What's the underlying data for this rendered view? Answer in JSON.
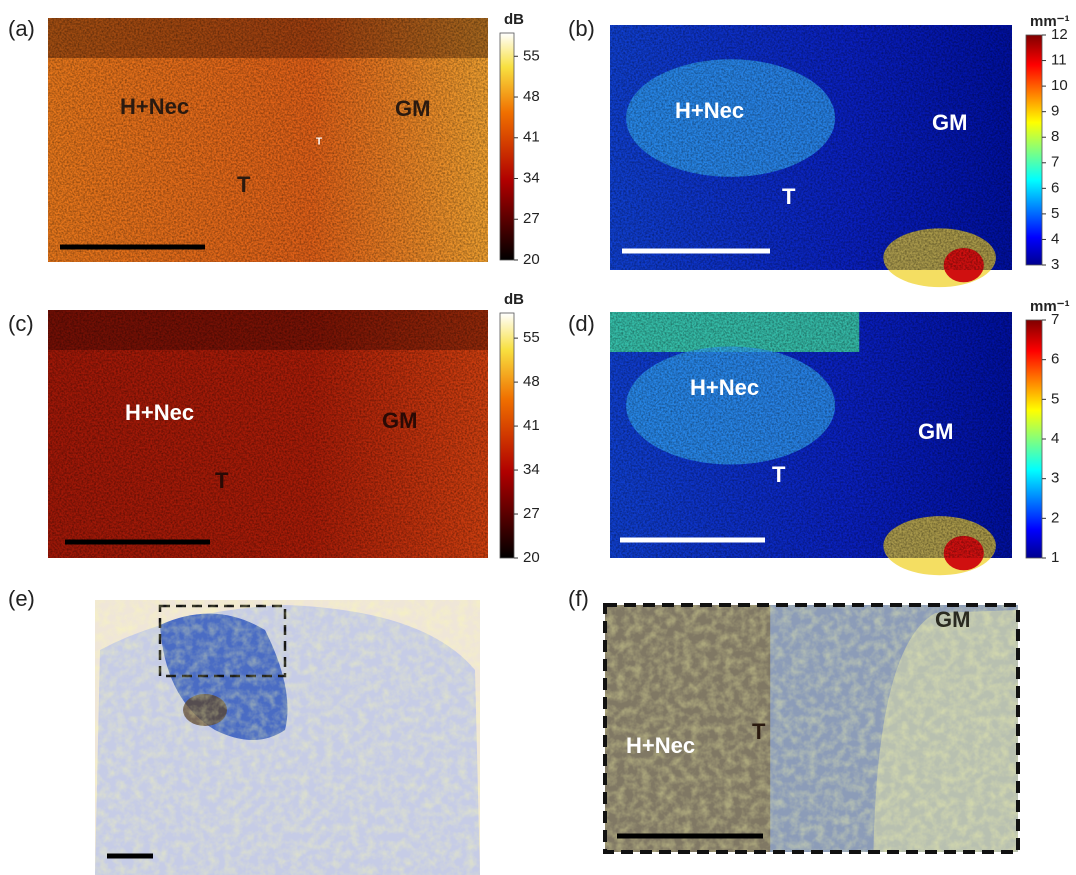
{
  "panels": [
    {
      "label": "(a)",
      "annotations": [
        "H+Nec",
        "GM",
        "T",
        "T"
      ],
      "colorbar": {
        "unit": "dB",
        "colormap": "hot",
        "lim": [
          20,
          59
        ],
        "ticks": [
          20,
          27,
          34,
          41,
          48,
          55
        ]
      }
    },
    {
      "label": "(b)",
      "annotations": [
        "H+Nec",
        "GM",
        "T"
      ],
      "colorbar": {
        "unit": "mm⁻¹",
        "colormap": "jet",
        "lim": [
          3,
          12
        ],
        "ticks": [
          3,
          4,
          5,
          6,
          7,
          8,
          9,
          10,
          11,
          12
        ]
      }
    },
    {
      "label": "(c)",
      "annotations": [
        "H+Nec",
        "GM",
        "T"
      ],
      "colorbar": {
        "unit": "dB",
        "colormap": "hot",
        "lim": [
          20,
          59
        ],
        "ticks": [
          20,
          27,
          34,
          41,
          48,
          55
        ]
      }
    },
    {
      "label": "(d)",
      "annotations": [
        "H+Nec",
        "GM",
        "T"
      ],
      "colorbar": {
        "unit": "mm⁻¹",
        "colormap": "jet",
        "lim": [
          1,
          7
        ],
        "ticks": [
          1,
          2,
          3,
          4,
          5,
          6,
          7
        ]
      }
    },
    {
      "label": "(e)",
      "annotations": []
    },
    {
      "label": "(f)",
      "annotations": [
        "H+Nec",
        "T",
        "GM"
      ]
    }
  ]
}
